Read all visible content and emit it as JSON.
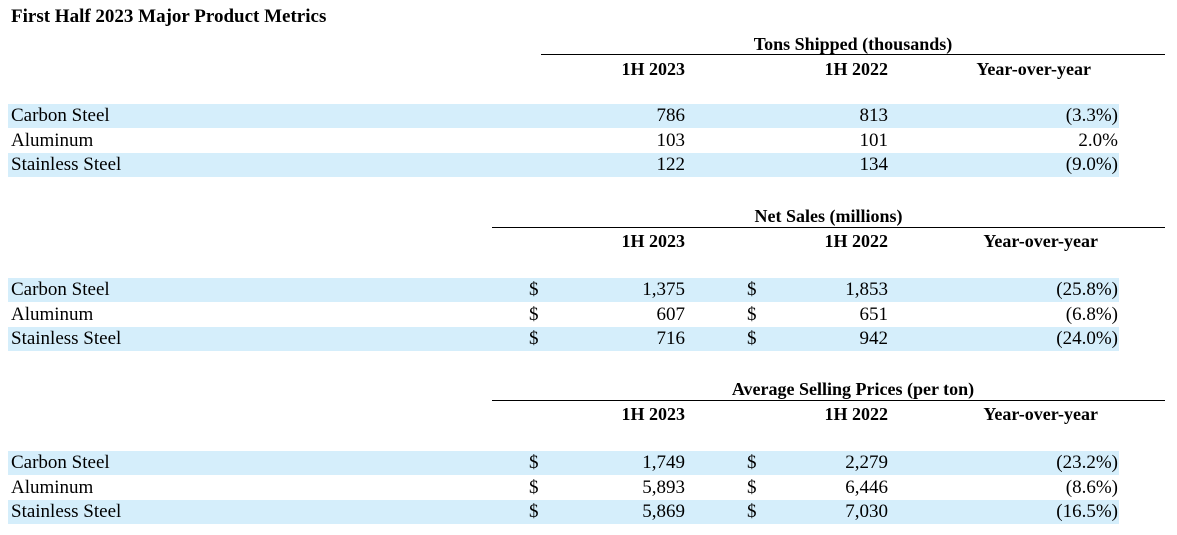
{
  "title": "First Half 2023 Major Product Metrics",
  "sections": [
    {
      "title": "Tons Shipped (thousands)",
      "has_dollar": false,
      "columns": [
        "1H 2023",
        "1H 2022",
        "Year-over-year"
      ],
      "rows": [
        {
          "label": "Carbon Steel",
          "h1_2023": "786",
          "h1_2022": "813",
          "yoy": "(3.3%)"
        },
        {
          "label": "Aluminum",
          "h1_2023": "103",
          "h1_2022": "101",
          "yoy": "2.0%"
        },
        {
          "label": "Stainless Steel",
          "h1_2023": "122",
          "h1_2022": "134",
          "yoy": "(9.0%)"
        }
      ]
    },
    {
      "title": "Net Sales (millions)",
      "has_dollar": true,
      "currency_symbol": "$",
      "columns": [
        "1H 2023",
        "1H 2022",
        "Year-over-year"
      ],
      "rows": [
        {
          "label": "Carbon Steel",
          "h1_2023": "1,375",
          "h1_2022": "1,853",
          "yoy": "(25.8%)"
        },
        {
          "label": "Aluminum",
          "h1_2023": "607",
          "h1_2022": "651",
          "yoy": "(6.8%)"
        },
        {
          "label": "Stainless Steel",
          "h1_2023": "716",
          "h1_2022": "942",
          "yoy": "(24.0%)"
        }
      ]
    },
    {
      "title": "Average Selling Prices (per ton)",
      "has_dollar": true,
      "currency_symbol": "$",
      "columns": [
        "1H 2023",
        "1H 2022",
        "Year-over-year"
      ],
      "rows": [
        {
          "label": "Carbon Steel",
          "h1_2023": "1,749",
          "h1_2022": "2,279",
          "yoy": "(23.2%)"
        },
        {
          "label": "Aluminum",
          "h1_2023": "5,893",
          "h1_2022": "6,446",
          "yoy": "(8.6%)"
        },
        {
          "label": "Stainless Steel",
          "h1_2023": "5,869",
          "h1_2022": "7,030",
          "yoy": "(16.5%)"
        }
      ]
    }
  ],
  "colors": {
    "row_shade": "#d5eefb",
    "text": "#000000"
  }
}
